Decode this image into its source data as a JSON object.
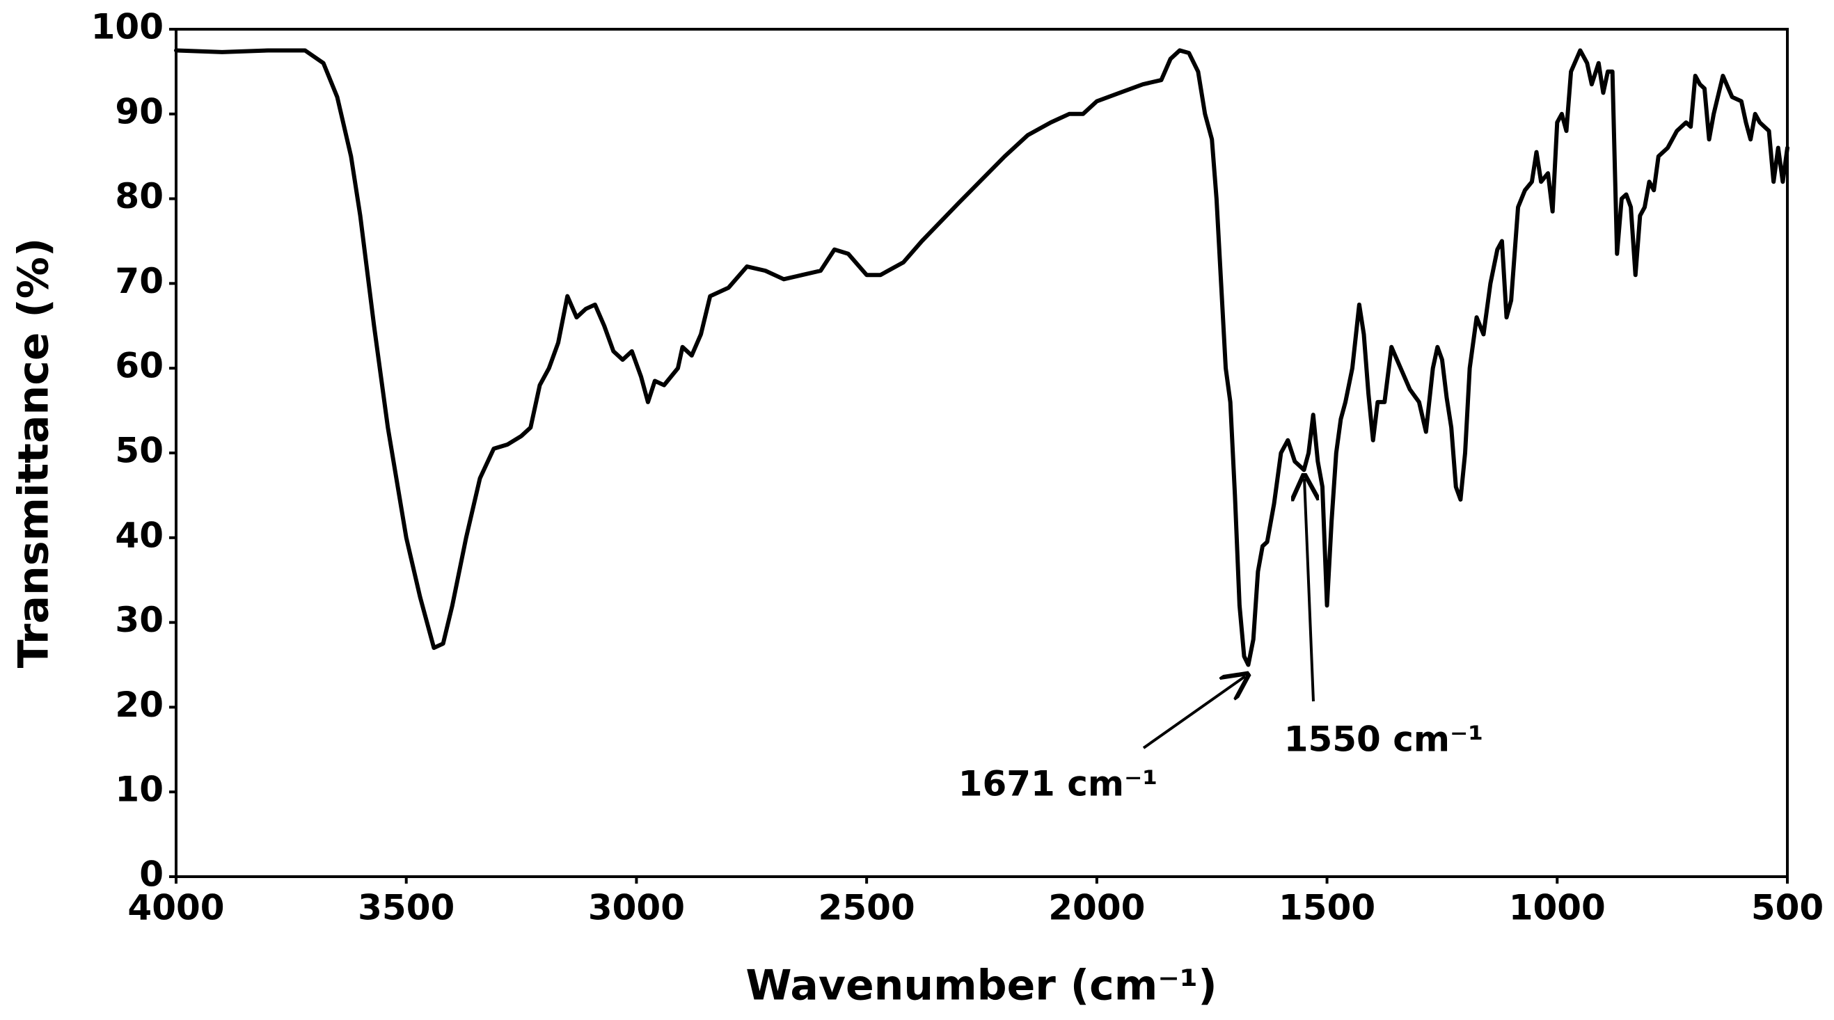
{
  "chart_data": {
    "type": "line",
    "xlabel": "Wavenumber (cm⁻¹)",
    "ylabel": "Transmittance (%)",
    "color": "#000000",
    "xlim": [
      4000,
      500
    ],
    "ylim": [
      0,
      100
    ],
    "xticks": [
      4000,
      3500,
      3000,
      2500,
      2000,
      1500,
      1000,
      500
    ],
    "yticks": [
      0,
      10,
      20,
      30,
      40,
      50,
      60,
      70,
      80,
      90,
      100
    ],
    "grid": false,
    "annotations": [
      "1671 cm⁻¹",
      "1550 cm⁻¹"
    ],
    "x": [
      4000,
      3900,
      3800,
      3720,
      3680,
      3650,
      3620,
      3600,
      3570,
      3540,
      3500,
      3470,
      3440,
      3420,
      3400,
      3370,
      3340,
      3310,
      3280,
      3250,
      3230,
      3210,
      3190,
      3170,
      3150,
      3130,
      3110,
      3090,
      3070,
      3050,
      3030,
      3010,
      2990,
      2975,
      2960,
      2940,
      2910,
      2900,
      2880,
      2860,
      2840,
      2800,
      2760,
      2720,
      2680,
      2640,
      2600,
      2570,
      2540,
      2500,
      2470,
      2420,
      2380,
      2300,
      2200,
      2150,
      2100,
      2060,
      2030,
      2000,
      1950,
      1900,
      1860,
      1840,
      1820,
      1800,
      1780,
      1765,
      1750,
      1740,
      1730,
      1720,
      1710,
      1700,
      1690,
      1680,
      1671,
      1660,
      1650,
      1640,
      1630,
      1615,
      1600,
      1585,
      1570,
      1550,
      1540,
      1530,
      1520,
      1510,
      1500,
      1490,
      1480,
      1470,
      1460,
      1445,
      1430,
      1420,
      1410,
      1400,
      1390,
      1375,
      1360,
      1340,
      1320,
      1300,
      1285,
      1270,
      1260,
      1250,
      1240,
      1230,
      1220,
      1210,
      1200,
      1190,
      1175,
      1160,
      1145,
      1130,
      1120,
      1110,
      1100,
      1085,
      1070,
      1055,
      1045,
      1035,
      1020,
      1010,
      1000,
      990,
      980,
      970,
      950,
      935,
      925,
      910,
      900,
      890,
      880,
      870,
      860,
      850,
      840,
      830,
      820,
      810,
      800,
      790,
      780,
      760,
      740,
      720,
      710,
      700,
      690,
      680,
      670,
      660,
      640,
      620,
      600,
      590,
      580,
      570,
      560,
      540,
      530,
      520,
      510,
      500
    ],
    "values": [
      97.5,
      97.3,
      97.5,
      97.5,
      96,
      92,
      85,
      78,
      65,
      53,
      40,
      33,
      27,
      27.5,
      32,
      40,
      47,
      50.5,
      51,
      52,
      53,
      58,
      60,
      63,
      68.5,
      66,
      67,
      67.5,
      65,
      62,
      61,
      62,
      59,
      56,
      58.5,
      58,
      60,
      62.5,
      61.5,
      64,
      68.5,
      69.5,
      72,
      71.5,
      70.5,
      71,
      71.5,
      74,
      73.5,
      71,
      71,
      72.5,
      75,
      79.5,
      85,
      87.5,
      89,
      90,
      90,
      91.5,
      92.5,
      93.5,
      94,
      96.5,
      97.5,
      97.2,
      95,
      90,
      87,
      80,
      70,
      60,
      56,
      45,
      32,
      26,
      25,
      28,
      36,
      39,
      39.5,
      44,
      50,
      51.5,
      49,
      48,
      50,
      54.5,
      49,
      46,
      32,
      42,
      50,
      54,
      56,
      60,
      67.5,
      64,
      57,
      51.5,
      56,
      56,
      62.5,
      60,
      57.5,
      56,
      52.5,
      60,
      62.5,
      61,
      56.5,
      53,
      46,
      44.5,
      50,
      60,
      66,
      64,
      70,
      74,
      75,
      66,
      68,
      79,
      81,
      82,
      85.5,
      82,
      83,
      78.5,
      89,
      90,
      88,
      95,
      97.5,
      96,
      93.5,
      96,
      92.5,
      95,
      95,
      73.5,
      80,
      80.5,
      79,
      71,
      78,
      79,
      82,
      81,
      85,
      86,
      88,
      89,
      88.5,
      94.5,
      93.5,
      93,
      87,
      90,
      94.5,
      92,
      91.5,
      89,
      87,
      90,
      89,
      88,
      82,
      86,
      82,
      86
    ]
  }
}
